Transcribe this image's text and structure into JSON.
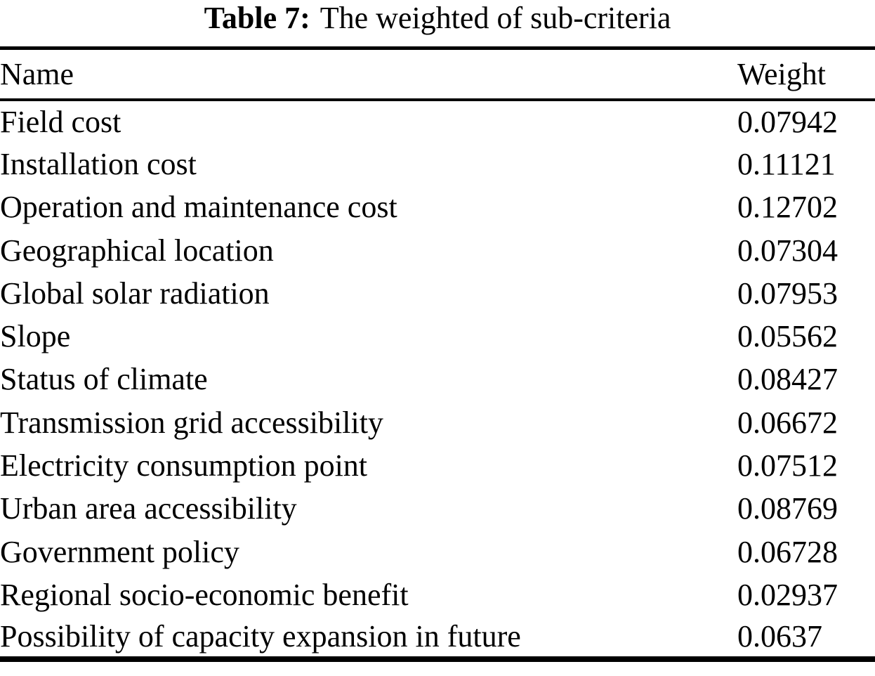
{
  "caption": {
    "label": "Table 7:",
    "text": "The weighted of sub-criteria"
  },
  "table": {
    "columns": [
      "Name",
      "Weight"
    ],
    "rows": [
      {
        "name": "Field cost",
        "weight": "0.07942"
      },
      {
        "name": "Installation cost",
        "weight": "0.11121"
      },
      {
        "name": "Operation and maintenance cost",
        "weight": "0.12702"
      },
      {
        "name": "Geographical location",
        "weight": "0.07304"
      },
      {
        "name": "Global solar radiation",
        "weight": "0.07953"
      },
      {
        "name": "Slope",
        "weight": "0.05562"
      },
      {
        "name": "Status of climate",
        "weight": "0.08427"
      },
      {
        "name": "Transmission grid accessibility",
        "weight": "0.06672"
      },
      {
        "name": "Electricity consumption point",
        "weight": "0.07512"
      },
      {
        "name": "Urban area accessibility",
        "weight": "0.08769"
      },
      {
        "name": "Government policy",
        "weight": "0.06728"
      },
      {
        "name": "Regional socio-economic benefit",
        "weight": "0.02937"
      },
      {
        "name": "Possibility of capacity expansion in future",
        "weight": "0.0637"
      }
    ]
  },
  "colors": {
    "text": "#000000",
    "background": "#ffffff",
    "rule": "#000000"
  }
}
